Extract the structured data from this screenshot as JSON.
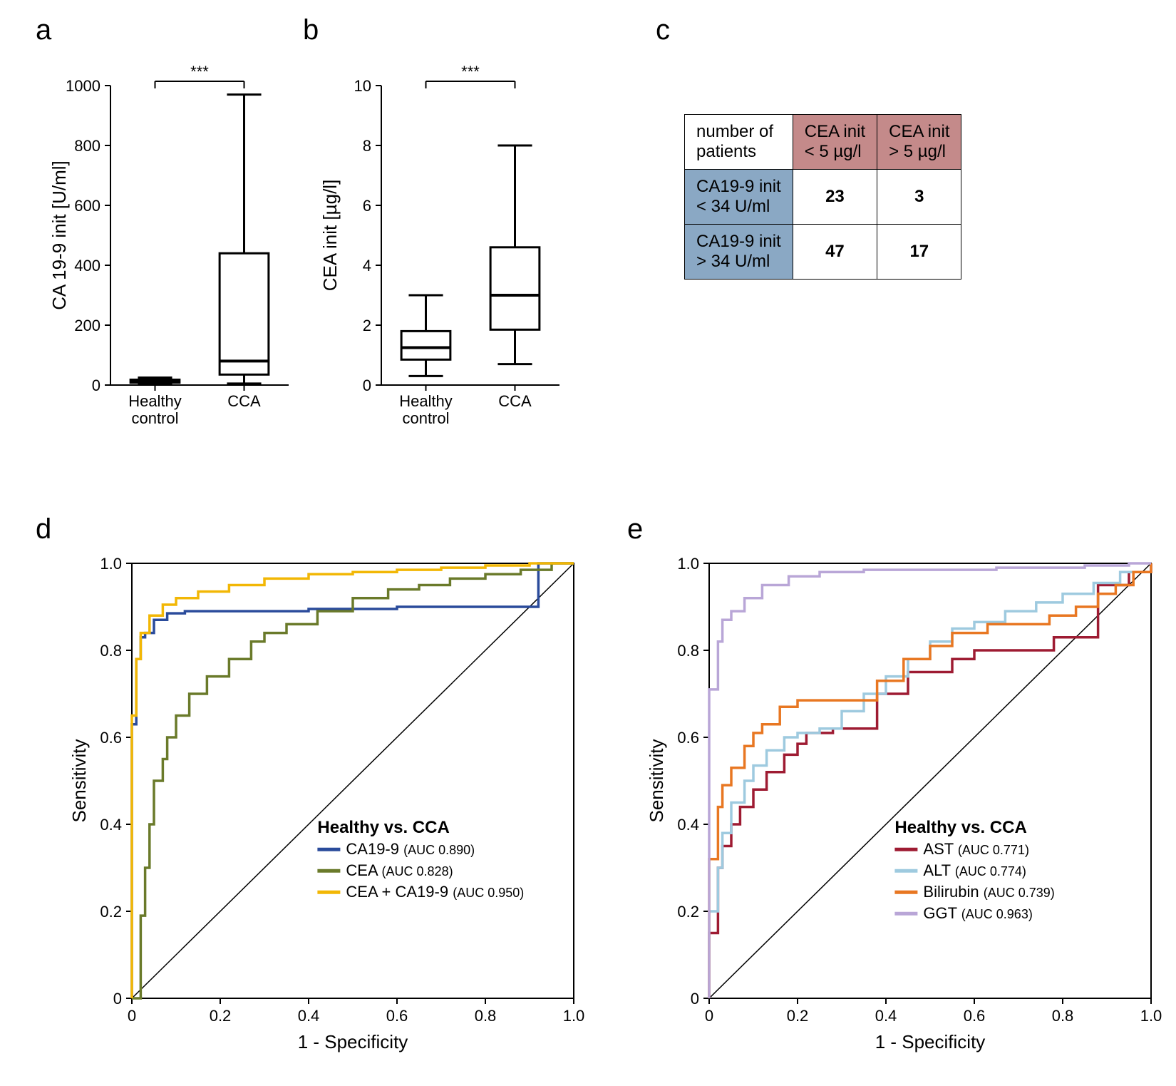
{
  "labels": {
    "a": "a",
    "b": "b",
    "c": "c",
    "d": "d",
    "e": "e"
  },
  "panelA": {
    "type": "boxplot",
    "ylabel": "CA 19-9 init [U/ml]",
    "ylim": [
      0,
      1000
    ],
    "ytick_step": 200,
    "categories": [
      "Healthy\ncontrol",
      "CCA"
    ],
    "boxes": [
      {
        "min": 5,
        "q1": 8,
        "median": 12,
        "q3": 18,
        "max": 25
      },
      {
        "min": 5,
        "q1": 35,
        "median": 80,
        "q3": 440,
        "max": 970
      }
    ],
    "significance": "***",
    "axis_color": "#000000",
    "box_stroke": "#000000",
    "background": "#ffffff"
  },
  "panelB": {
    "type": "boxplot",
    "ylabel": "CEA init [µg/l]",
    "ylim": [
      0,
      10
    ],
    "ytick_step": 2,
    "categories": [
      "Healthy\ncontrol",
      "CCA"
    ],
    "boxes": [
      {
        "min": 0.3,
        "q1": 0.85,
        "median": 1.25,
        "q3": 1.8,
        "max": 3.0
      },
      {
        "min": 0.7,
        "q1": 1.85,
        "median": 3.0,
        "q3": 4.6,
        "max": 8.0
      }
    ],
    "significance": "***",
    "axis_color": "#000000",
    "box_stroke": "#000000",
    "background": "#ffffff"
  },
  "panelC": {
    "type": "table",
    "header_corner": "number of\npatients",
    "col_headers": [
      "CEA init\n< 5 µg/l",
      "CEA init\n> 5 µg/l"
    ],
    "row_headers": [
      "CA19-9 init\n< 34 U/ml",
      "CA19-9 init\n> 34 U/ml"
    ],
    "cells": [
      [
        23,
        3
      ],
      [
        47,
        17
      ]
    ],
    "col_header_bg": "#c48a8a",
    "row_header_bg": "#8aa8c4",
    "border_color": "#000000",
    "font_size": 24
  },
  "panelD": {
    "type": "roc",
    "title": "Healthy vs. CCA",
    "xlabel": "1 - Specificity",
    "ylabel": "Sensitivity",
    "xlim": [
      0,
      1
    ],
    "ylim": [
      0,
      1
    ],
    "xtick_step": 0.2,
    "ytick_step": 0.2,
    "diagonal": true,
    "series": [
      {
        "name": "CA19-9",
        "auc": "0.890",
        "color": "#2a4b9b",
        "points": [
          [
            0,
            0
          ],
          [
            0,
            0.63
          ],
          [
            0.01,
            0.78
          ],
          [
            0.02,
            0.83
          ],
          [
            0.03,
            0.84
          ],
          [
            0.05,
            0.87
          ],
          [
            0.08,
            0.885
          ],
          [
            0.12,
            0.89
          ],
          [
            0.2,
            0.89
          ],
          [
            0.4,
            0.895
          ],
          [
            0.6,
            0.9
          ],
          [
            0.8,
            0.9
          ],
          [
            0.92,
            0.9
          ],
          [
            0.92,
            1.0
          ],
          [
            1.0,
            1.0
          ]
        ]
      },
      {
        "name": "CEA",
        "auc": "0.828",
        "color": "#6a7a2a",
        "points": [
          [
            0,
            0
          ],
          [
            0.02,
            0.19
          ],
          [
            0.03,
            0.3
          ],
          [
            0.04,
            0.4
          ],
          [
            0.05,
            0.5
          ],
          [
            0.07,
            0.55
          ],
          [
            0.08,
            0.6
          ],
          [
            0.1,
            0.65
          ],
          [
            0.13,
            0.7
          ],
          [
            0.17,
            0.74
          ],
          [
            0.22,
            0.78
          ],
          [
            0.27,
            0.82
          ],
          [
            0.3,
            0.84
          ],
          [
            0.35,
            0.86
          ],
          [
            0.42,
            0.89
          ],
          [
            0.5,
            0.92
          ],
          [
            0.58,
            0.94
          ],
          [
            0.65,
            0.95
          ],
          [
            0.72,
            0.965
          ],
          [
            0.8,
            0.975
          ],
          [
            0.88,
            0.985
          ],
          [
            0.95,
            1.0
          ],
          [
            1.0,
            1.0
          ]
        ]
      },
      {
        "name": "CEA + CA19-9",
        "auc": "0.950",
        "color": "#f2b705",
        "points": [
          [
            0,
            0
          ],
          [
            0,
            0.65
          ],
          [
            0.01,
            0.78
          ],
          [
            0.02,
            0.84
          ],
          [
            0.04,
            0.88
          ],
          [
            0.07,
            0.905
          ],
          [
            0.1,
            0.92
          ],
          [
            0.15,
            0.935
          ],
          [
            0.22,
            0.95
          ],
          [
            0.3,
            0.965
          ],
          [
            0.4,
            0.975
          ],
          [
            0.5,
            0.98
          ],
          [
            0.6,
            0.985
          ],
          [
            0.7,
            0.99
          ],
          [
            0.8,
            0.995
          ],
          [
            0.9,
            1.0
          ],
          [
            1.0,
            1.0
          ]
        ]
      }
    ],
    "legend_pos": "lower-right",
    "line_width": 3.5,
    "axis_color": "#000000"
  },
  "panelE": {
    "type": "roc",
    "title": "Healthy vs. CCA",
    "xlabel": "1 - Specificity",
    "ylabel": "Sensitivity",
    "xlim": [
      0,
      1
    ],
    "ylim": [
      0,
      1
    ],
    "xtick_step": 0.2,
    "ytick_step": 0.2,
    "diagonal": true,
    "series": [
      {
        "name": "AST",
        "auc": "0.771",
        "color": "#9e1b32",
        "points": [
          [
            0,
            0
          ],
          [
            0.0,
            0.15
          ],
          [
            0.02,
            0.3
          ],
          [
            0.03,
            0.35
          ],
          [
            0.05,
            0.4
          ],
          [
            0.07,
            0.44
          ],
          [
            0.1,
            0.48
          ],
          [
            0.13,
            0.52
          ],
          [
            0.17,
            0.56
          ],
          [
            0.2,
            0.585
          ],
          [
            0.22,
            0.61
          ],
          [
            0.28,
            0.62
          ],
          [
            0.35,
            0.62
          ],
          [
            0.38,
            0.7
          ],
          [
            0.45,
            0.75
          ],
          [
            0.55,
            0.78
          ],
          [
            0.6,
            0.8
          ],
          [
            0.65,
            0.8
          ],
          [
            0.75,
            0.8
          ],
          [
            0.78,
            0.83
          ],
          [
            0.88,
            0.83
          ],
          [
            0.88,
            0.95
          ],
          [
            0.95,
            0.98
          ],
          [
            1.0,
            1.0
          ]
        ]
      },
      {
        "name": "ALT",
        "auc": "0.774",
        "color": "#9ecadf",
        "points": [
          [
            0,
            0
          ],
          [
            0.0,
            0.2
          ],
          [
            0.02,
            0.3
          ],
          [
            0.03,
            0.38
          ],
          [
            0.05,
            0.45
          ],
          [
            0.08,
            0.5
          ],
          [
            0.1,
            0.535
          ],
          [
            0.13,
            0.57
          ],
          [
            0.17,
            0.6
          ],
          [
            0.2,
            0.61
          ],
          [
            0.25,
            0.62
          ],
          [
            0.3,
            0.66
          ],
          [
            0.35,
            0.7
          ],
          [
            0.4,
            0.74
          ],
          [
            0.45,
            0.78
          ],
          [
            0.5,
            0.82
          ],
          [
            0.55,
            0.85
          ],
          [
            0.6,
            0.865
          ],
          [
            0.67,
            0.89
          ],
          [
            0.74,
            0.91
          ],
          [
            0.8,
            0.93
          ],
          [
            0.87,
            0.955
          ],
          [
            0.93,
            0.98
          ],
          [
            1.0,
            1.0
          ]
        ]
      },
      {
        "name": "Bilirubin",
        "auc": "0.739",
        "color": "#e87722",
        "points": [
          [
            0,
            0
          ],
          [
            0.0,
            0.32
          ],
          [
            0.02,
            0.44
          ],
          [
            0.03,
            0.49
          ],
          [
            0.05,
            0.53
          ],
          [
            0.08,
            0.58
          ],
          [
            0.1,
            0.61
          ],
          [
            0.12,
            0.63
          ],
          [
            0.16,
            0.67
          ],
          [
            0.2,
            0.685
          ],
          [
            0.35,
            0.685
          ],
          [
            0.38,
            0.73
          ],
          [
            0.44,
            0.78
          ],
          [
            0.5,
            0.81
          ],
          [
            0.55,
            0.84
          ],
          [
            0.63,
            0.86
          ],
          [
            0.7,
            0.86
          ],
          [
            0.77,
            0.88
          ],
          [
            0.83,
            0.9
          ],
          [
            0.88,
            0.93
          ],
          [
            0.92,
            0.95
          ],
          [
            0.96,
            0.98
          ],
          [
            1.0,
            1.0
          ]
        ]
      },
      {
        "name": "GGT",
        "auc": "0.963",
        "color": "#b9a6d7",
        "points": [
          [
            0,
            0
          ],
          [
            0.0,
            0.71
          ],
          [
            0.02,
            0.82
          ],
          [
            0.03,
            0.87
          ],
          [
            0.05,
            0.89
          ],
          [
            0.08,
            0.92
          ],
          [
            0.12,
            0.95
          ],
          [
            0.18,
            0.97
          ],
          [
            0.25,
            0.98
          ],
          [
            0.35,
            0.985
          ],
          [
            0.45,
            0.985
          ],
          [
            0.55,
            0.985
          ],
          [
            0.65,
            0.99
          ],
          [
            0.75,
            0.99
          ],
          [
            0.85,
            0.995
          ],
          [
            0.95,
            1.0
          ],
          [
            1.0,
            1.0
          ]
        ]
      }
    ],
    "legend_pos": "lower-right",
    "line_width": 3.5,
    "axis_color": "#000000"
  }
}
